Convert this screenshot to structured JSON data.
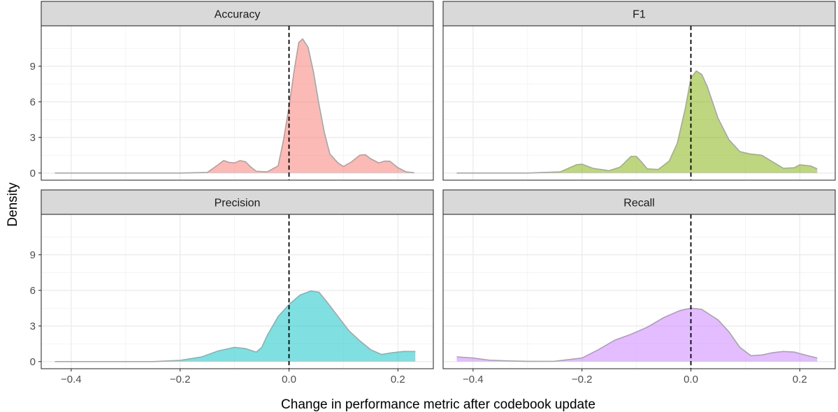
{
  "chart_data": {
    "type": "area",
    "subtype": "faceted density",
    "xlabel": "Change in performance metric after codebook update",
    "ylabel": "Density",
    "xlim": [
      -0.455,
      0.265
    ],
    "ylim": [
      -0.6,
      12.4
    ],
    "x_ticks": [
      -0.4,
      -0.2,
      0.0,
      0.2
    ],
    "x_tick_labels": [
      "−0.4",
      "−0.2",
      "0.0",
      "0.2"
    ],
    "y_ticks": [
      0,
      3,
      6,
      9
    ],
    "y_tick_labels": [
      "0",
      "3",
      "6",
      "9"
    ],
    "reference_line": {
      "x": 0.0,
      "style": "dashed",
      "color": "#000000"
    },
    "grid": true,
    "legend": "none",
    "line_color": "#a6a6a6",
    "panels": [
      {
        "name": "Accuracy",
        "color": "#f8766d",
        "points": [
          [
            -0.43,
            0
          ],
          [
            -0.2,
            0
          ],
          [
            -0.15,
            0.05
          ],
          [
            -0.13,
            0.7
          ],
          [
            -0.12,
            1.05
          ],
          [
            -0.11,
            0.9
          ],
          [
            -0.1,
            0.85
          ],
          [
            -0.09,
            1.05
          ],
          [
            -0.08,
            0.95
          ],
          [
            -0.07,
            0.5
          ],
          [
            -0.06,
            0.15
          ],
          [
            -0.04,
            0.1
          ],
          [
            -0.02,
            0.6
          ],
          [
            -0.01,
            2.8
          ],
          [
            0.0,
            5.6
          ],
          [
            0.01,
            8.8
          ],
          [
            0.018,
            11.0
          ],
          [
            0.025,
            11.3
          ],
          [
            0.035,
            10.6
          ],
          [
            0.045,
            8.5
          ],
          [
            0.055,
            5.8
          ],
          [
            0.065,
            3.4
          ],
          [
            0.075,
            1.6
          ],
          [
            0.09,
            0.85
          ],
          [
            0.1,
            0.55
          ],
          [
            0.115,
            0.95
          ],
          [
            0.13,
            1.5
          ],
          [
            0.14,
            1.55
          ],
          [
            0.15,
            1.2
          ],
          [
            0.165,
            0.85
          ],
          [
            0.175,
            1.0
          ],
          [
            0.185,
            1.0
          ],
          [
            0.2,
            0.45
          ],
          [
            0.215,
            0.1
          ],
          [
            0.23,
            0.02
          ]
        ]
      },
      {
        "name": "F1",
        "color": "#7cae00",
        "points": [
          [
            -0.43,
            0
          ],
          [
            -0.3,
            0.0
          ],
          [
            -0.24,
            0.1
          ],
          [
            -0.21,
            0.7
          ],
          [
            -0.2,
            0.75
          ],
          [
            -0.18,
            0.4
          ],
          [
            -0.15,
            0.2
          ],
          [
            -0.13,
            0.5
          ],
          [
            -0.11,
            1.4
          ],
          [
            -0.1,
            1.4
          ],
          [
            -0.09,
            0.9
          ],
          [
            -0.08,
            0.35
          ],
          [
            -0.06,
            0.3
          ],
          [
            -0.04,
            1.0
          ],
          [
            -0.025,
            2.5
          ],
          [
            -0.01,
            5.5
          ],
          [
            0.0,
            8.0
          ],
          [
            0.01,
            8.6
          ],
          [
            0.02,
            8.3
          ],
          [
            0.03,
            7.3
          ],
          [
            0.05,
            4.6
          ],
          [
            0.07,
            2.8
          ],
          [
            0.09,
            1.8
          ],
          [
            0.11,
            1.6
          ],
          [
            0.13,
            1.5
          ],
          [
            0.15,
            0.95
          ],
          [
            0.17,
            0.4
          ],
          [
            0.19,
            0.45
          ],
          [
            0.2,
            0.7
          ],
          [
            0.22,
            0.6
          ],
          [
            0.232,
            0.35
          ]
        ]
      },
      {
        "name": "Precision",
        "color": "#00bfc4",
        "points": [
          [
            -0.43,
            0
          ],
          [
            -0.25,
            0.0
          ],
          [
            -0.2,
            0.1
          ],
          [
            -0.16,
            0.4
          ],
          [
            -0.13,
            0.9
          ],
          [
            -0.1,
            1.2
          ],
          [
            -0.08,
            1.1
          ],
          [
            -0.06,
            0.8
          ],
          [
            -0.05,
            1.2
          ],
          [
            -0.04,
            2.2
          ],
          [
            -0.02,
            3.8
          ],
          [
            0.0,
            4.8
          ],
          [
            0.02,
            5.6
          ],
          [
            0.04,
            5.95
          ],
          [
            0.055,
            5.85
          ],
          [
            0.07,
            5.0
          ],
          [
            0.09,
            3.8
          ],
          [
            0.11,
            2.6
          ],
          [
            0.13,
            1.75
          ],
          [
            0.15,
            1.0
          ],
          [
            0.17,
            0.6
          ],
          [
            0.19,
            0.75
          ],
          [
            0.21,
            0.85
          ],
          [
            0.232,
            0.85
          ]
        ]
      },
      {
        "name": "Recall",
        "color": "#c77cff",
        "points": [
          [
            -0.43,
            0.4
          ],
          [
            -0.4,
            0.3
          ],
          [
            -0.37,
            0.12
          ],
          [
            -0.33,
            0.05
          ],
          [
            -0.3,
            0.02
          ],
          [
            -0.25,
            0.03
          ],
          [
            -0.2,
            0.3
          ],
          [
            -0.17,
            1.0
          ],
          [
            -0.14,
            1.8
          ],
          [
            -0.11,
            2.3
          ],
          [
            -0.08,
            2.9
          ],
          [
            -0.05,
            3.7
          ],
          [
            -0.02,
            4.3
          ],
          [
            0.0,
            4.5
          ],
          [
            0.02,
            4.4
          ],
          [
            0.05,
            3.5
          ],
          [
            0.07,
            2.5
          ],
          [
            0.09,
            1.2
          ],
          [
            0.11,
            0.5
          ],
          [
            0.13,
            0.55
          ],
          [
            0.15,
            0.75
          ],
          [
            0.17,
            0.85
          ],
          [
            0.19,
            0.8
          ],
          [
            0.21,
            0.55
          ],
          [
            0.232,
            0.3
          ]
        ]
      }
    ]
  }
}
